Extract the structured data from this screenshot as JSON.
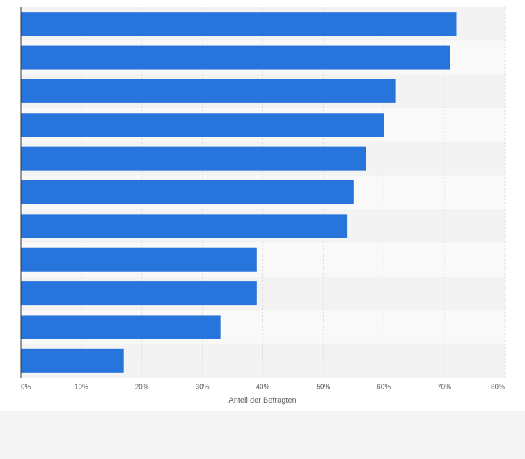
{
  "chart_data": {
    "type": "bar",
    "orientation": "horizontal",
    "x_label": "Anteil der Befragten",
    "categories": [
      null,
      null,
      null,
      null,
      null,
      null,
      null,
      null,
      null,
      null,
      null
    ],
    "values": [
      72,
      71,
      62,
      60,
      57,
      55,
      54,
      39,
      39,
      33,
      17
    ],
    "color": "#2874dd",
    "xlim": [
      0,
      80
    ],
    "xticks": [
      {
        "value": 0,
        "label": "0%"
      },
      {
        "value": 10,
        "label": "10%"
      },
      {
        "value": 20,
        "label": "20%"
      },
      {
        "value": 30,
        "label": "30%"
      },
      {
        "value": 40,
        "label": "40%"
      },
      {
        "value": 50,
        "label": "50%"
      },
      {
        "value": 60,
        "label": "60%"
      },
      {
        "value": 70,
        "label": "70%"
      },
      {
        "value": 80,
        "label": "80%"
      }
    ],
    "grid": true
  }
}
